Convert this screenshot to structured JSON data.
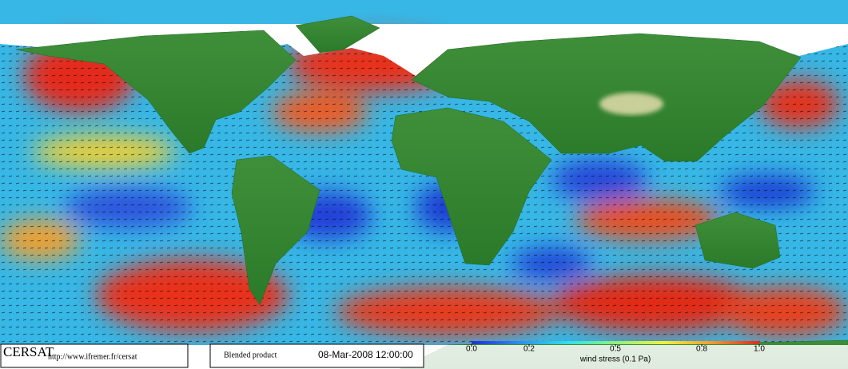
{
  "footer": {
    "logo": "CERSAT",
    "url": "http://www.ifremer.fr/cersat",
    "product": "Blended product",
    "date": "08-Mar-2008 12:00:00"
  },
  "colorbar": {
    "label": "wind stress (0.1 Pa)",
    "lim": [
      0,
      1
    ],
    "ticks": [
      {
        "value": 0,
        "label": "0.0"
      },
      0.2,
      0.5,
      0.8,
      {
        "value": 1,
        "label": "1.0"
      }
    ],
    "colors": [
      "#1e2fd6",
      "#2f8cf0",
      "#2fe0e8",
      "#8ff07a",
      "#f4f03a",
      "#f59a2a",
      "#e02a1a"
    ]
  }
}
